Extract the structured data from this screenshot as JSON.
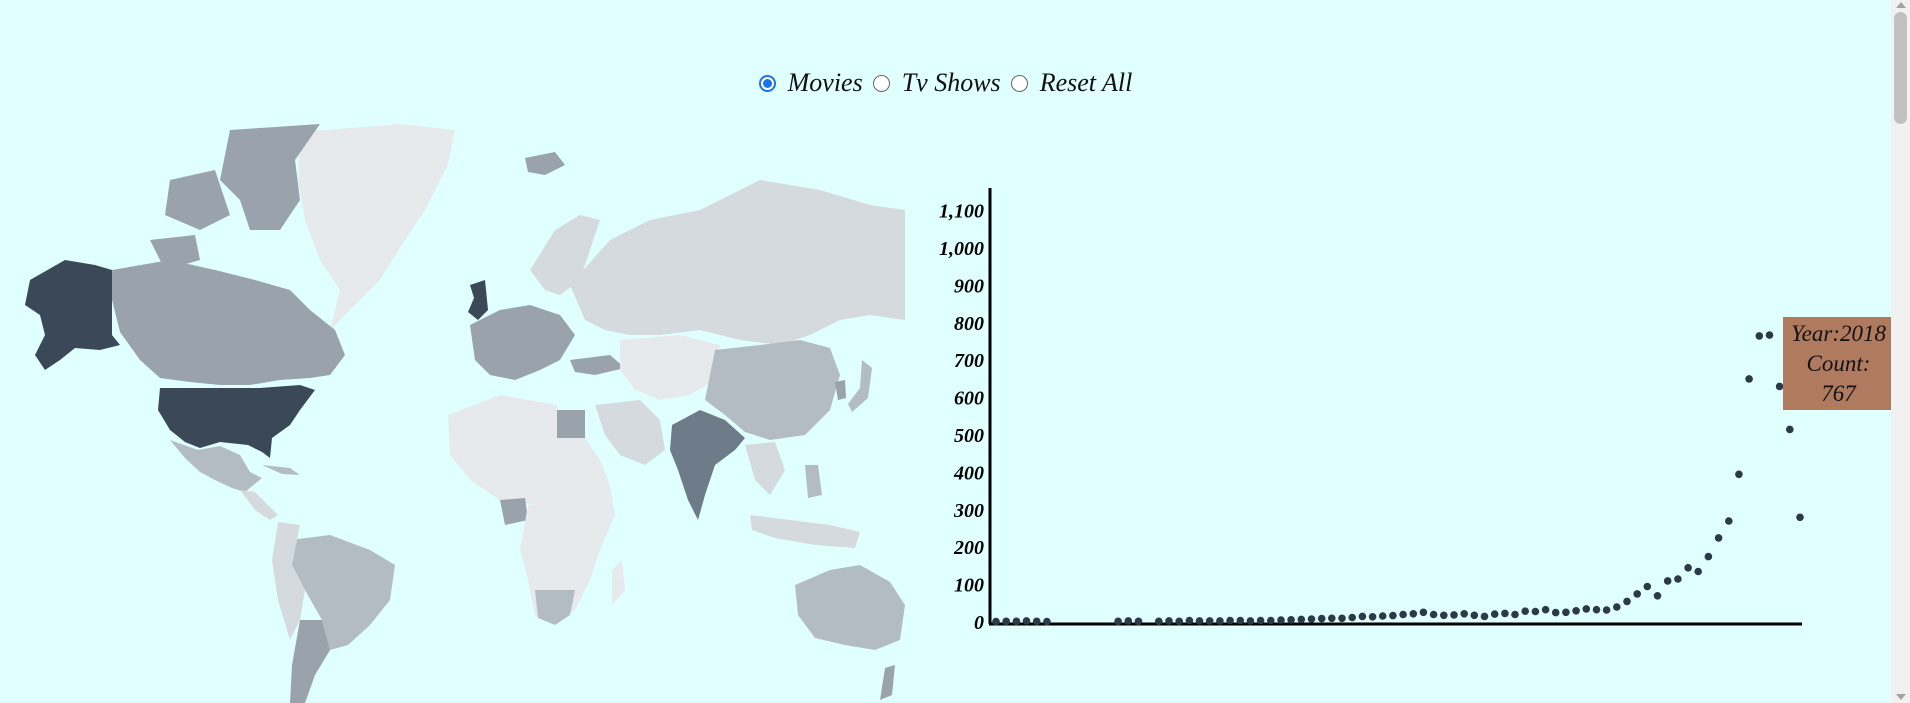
{
  "controls": {
    "options": [
      {
        "label": "Movies",
        "checked": true
      },
      {
        "label": "Tv Shows",
        "checked": false
      },
      {
        "label": "Reset All",
        "checked": false
      }
    ]
  },
  "colors": {
    "background": "#e0ffff",
    "country_highest": "#3a4858",
    "country_high": "#6e7b88",
    "country_mid": "#9aa3ab",
    "country_low": "#b4bcc3",
    "country_lower": "#d4dade",
    "country_lowest": "#e7eaec",
    "dots": "#2c3a47",
    "tooltip_bg": "#b07a5f",
    "radio_accent": "#1a73e8"
  },
  "tooltip": {
    "year_line": "Year:2018",
    "count_label": "Count:",
    "count_value": "767"
  },
  "chart_data": {
    "type": "scatter",
    "xlabel": "",
    "ylabel": "",
    "ylim": [
      0,
      1100
    ],
    "yticks": [
      "0",
      "100",
      "200",
      "300",
      "400",
      "500",
      "600",
      "700",
      "800",
      "900",
      "1,000",
      "1,100"
    ],
    "grid": false,
    "x": [
      1942,
      1943,
      1944,
      1945,
      1946,
      1947,
      1954,
      1955,
      1956,
      1958,
      1959,
      1960,
      1961,
      1962,
      1963,
      1964,
      1965,
      1966,
      1967,
      1968,
      1969,
      1970,
      1971,
      1972,
      1973,
      1974,
      1975,
      1976,
      1977,
      1978,
      1979,
      1980,
      1981,
      1982,
      1983,
      1984,
      1985,
      1986,
      1987,
      1988,
      1989,
      1990,
      1991,
      1992,
      1993,
      1994,
      1995,
      1996,
      1997,
      1998,
      1999,
      2000,
      2001,
      2002,
      2003,
      2004,
      2005,
      2006,
      2007,
      2008,
      2009,
      2010,
      2011,
      2012,
      2013,
      2014,
      2015,
      2016,
      2017,
      2018,
      2019,
      2020,
      2021
    ],
    "y": [
      1,
      2,
      2,
      3,
      2,
      1,
      2,
      3,
      2,
      2,
      3,
      2,
      4,
      3,
      3,
      3,
      4,
      4,
      3,
      4,
      4,
      5,
      6,
      7,
      8,
      9,
      10,
      10,
      12,
      15,
      14,
      16,
      17,
      20,
      22,
      26,
      20,
      18,
      19,
      22,
      18,
      15,
      21,
      23,
      20,
      29,
      28,
      33,
      25,
      26,
      30,
      35,
      33,
      32,
      40,
      55,
      75,
      95,
      70,
      110,
      115,
      145,
      135,
      175,
      225,
      270,
      395,
      650,
      765,
      767,
      630,
      515,
      280
    ]
  }
}
